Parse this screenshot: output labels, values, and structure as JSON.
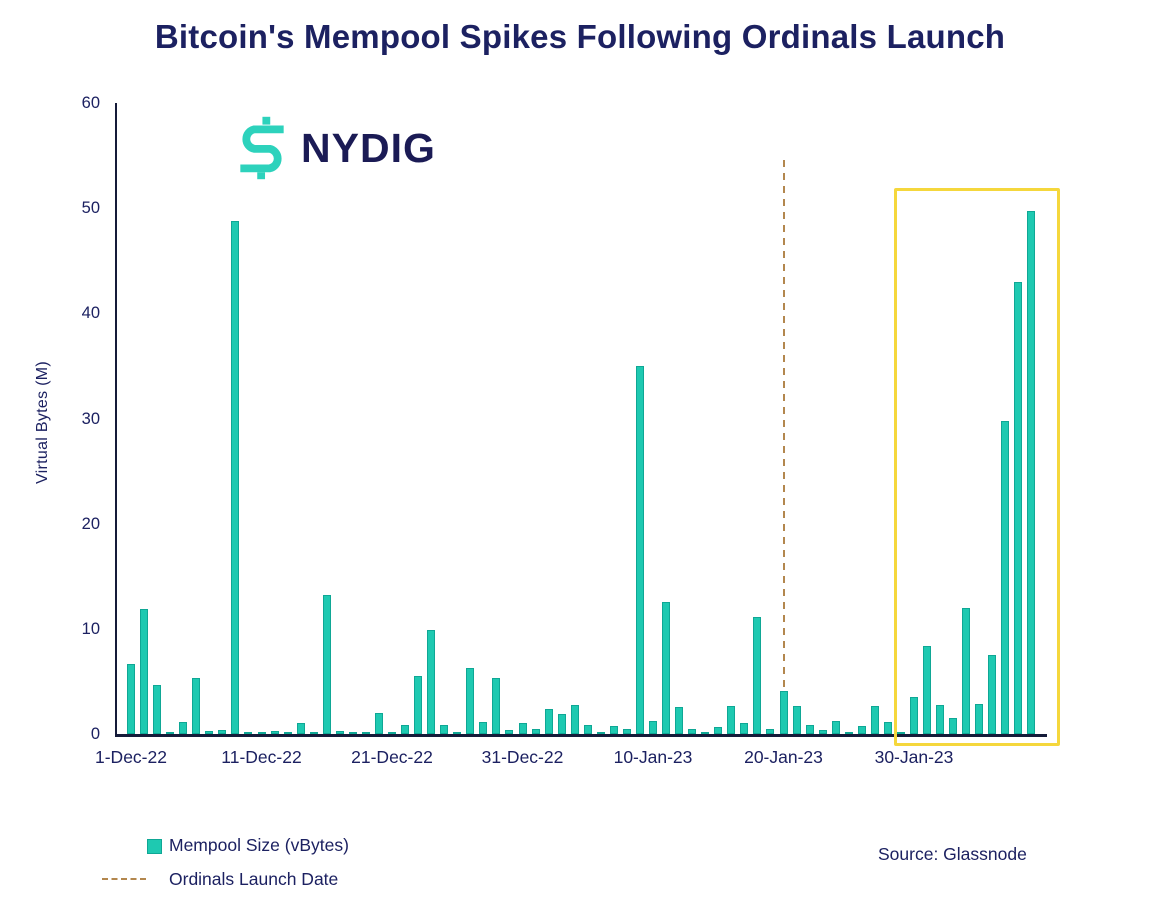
{
  "title": "Bitcoin's Mempool Spikes Following Ordinals Launch",
  "logo": {
    "text": "NYDIG",
    "icon": "nydig-s-mark-icon",
    "icon_color": "#2dd2bc",
    "text_color": "#1b1b55"
  },
  "source_label": "Source: Glassnode",
  "legend": [
    {
      "marker": "teal-square",
      "label": "Mempool Size (vBytes)"
    },
    {
      "marker": "tan-dashed-line",
      "label": "Ordinals Launch Date"
    }
  ],
  "colors": {
    "bar_fill": "#1ec9b1",
    "bar_border": "#0fa795",
    "axis": "#151b39",
    "text_navy": "#1c2161",
    "dashed_line": "#b3874e",
    "highlight_box": "#f5d73c",
    "background": "#ffffff"
  },
  "chart_data": {
    "type": "bar",
    "title": "Bitcoin's Mempool Spikes Following Ordinals Launch",
    "xlabel": "",
    "ylabel": "Virtual Bytes (M)",
    "ylim": [
      0,
      60
    ],
    "yticks": [
      0,
      10,
      20,
      30,
      40,
      50,
      60
    ],
    "grid": false,
    "legend_position": "bottom-left",
    "x_tick_labels": [
      "1-Dec-22",
      "11-Dec-22",
      "21-Dec-22",
      "31-Dec-22",
      "10-Jan-23",
      "20-Jan-23",
      "30-Jan-23"
    ],
    "x_tick_every": 10,
    "series_name": "Mempool Size (vBytes)",
    "dates": [
      "1-Dec-22",
      "2-Dec-22",
      "3-Dec-22",
      "4-Dec-22",
      "5-Dec-22",
      "6-Dec-22",
      "7-Dec-22",
      "8-Dec-22",
      "9-Dec-22",
      "10-Dec-22",
      "11-Dec-22",
      "12-Dec-22",
      "13-Dec-22",
      "14-Dec-22",
      "15-Dec-22",
      "16-Dec-22",
      "17-Dec-22",
      "18-Dec-22",
      "19-Dec-22",
      "20-Dec-22",
      "21-Dec-22",
      "22-Dec-22",
      "23-Dec-22",
      "24-Dec-22",
      "25-Dec-22",
      "26-Dec-22",
      "27-Dec-22",
      "28-Dec-22",
      "29-Dec-22",
      "30-Dec-22",
      "31-Dec-22",
      "1-Jan-23",
      "2-Jan-23",
      "3-Jan-23",
      "4-Jan-23",
      "5-Jan-23",
      "6-Jan-23",
      "7-Jan-23",
      "8-Jan-23",
      "9-Jan-23",
      "10-Jan-23",
      "11-Jan-23",
      "12-Jan-23",
      "13-Jan-23",
      "14-Jan-23",
      "15-Jan-23",
      "16-Jan-23",
      "17-Jan-23",
      "18-Jan-23",
      "19-Jan-23",
      "20-Jan-23",
      "21-Jan-23",
      "22-Jan-23",
      "23-Jan-23",
      "24-Jan-23",
      "25-Jan-23",
      "26-Jan-23",
      "27-Jan-23",
      "28-Jan-23",
      "29-Jan-23",
      "30-Jan-23",
      "31-Jan-23",
      "1-Feb-23",
      "2-Feb-23",
      "3-Feb-23",
      "4-Feb-23",
      "5-Feb-23",
      "6-Feb-23",
      "7-Feb-23",
      "8-Feb-23"
    ],
    "values": [
      6.7,
      11.9,
      4.7,
      0.2,
      1.1,
      5.3,
      0.3,
      0.4,
      48.8,
      0.1,
      0.1,
      0.3,
      0.05,
      1.0,
      0.2,
      13.2,
      0.3,
      0.2,
      0.1,
      2.0,
      0.2,
      0.9,
      5.5,
      9.9,
      0.9,
      0.05,
      6.3,
      1.1,
      5.3,
      0.4,
      1.0,
      0.5,
      2.4,
      1.9,
      2.8,
      0.9,
      0.05,
      0.8,
      0.5,
      35.0,
      1.2,
      12.6,
      2.6,
      0.5,
      0.1,
      0.7,
      2.7,
      1.0,
      11.1,
      0.5,
      4.1,
      2.7,
      0.9,
      0.4,
      1.2,
      0.05,
      0.8,
      2.7,
      1.1,
      0.05,
      3.5,
      8.4,
      2.8,
      1.5,
      12.0,
      2.9,
      7.5,
      29.8,
      43.0,
      49.7
    ],
    "annotations": {
      "vline": {
        "date": "20-Jan-23",
        "index": 50,
        "label": "Ordinals Launch Date",
        "style": "dashed",
        "color": "#b3874e",
        "top_value": 54.6
      },
      "highlight_box": {
        "start_date": "29-Jan-23",
        "end_date": "8-Feb-23",
        "start_index": 59,
        "end_index": 69,
        "color": "#f5d73c"
      }
    }
  }
}
